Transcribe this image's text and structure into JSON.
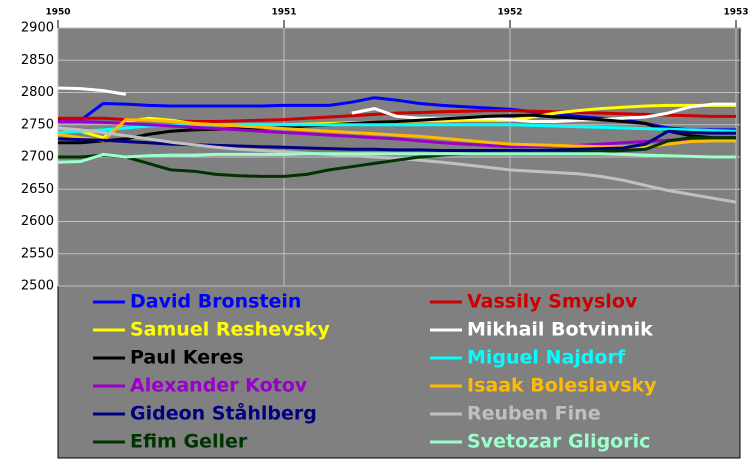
{
  "chart_data": {
    "type": "line",
    "x": [
      1950,
      1950.1,
      1950.2,
      1950.3,
      1950.4,
      1950.5,
      1950.6,
      1950.7,
      1950.8,
      1950.9,
      1951,
      1951.1,
      1951.2,
      1951.3,
      1951.4,
      1951.5,
      1951.6,
      1951.7,
      1951.8,
      1951.9,
      1952,
      1952.1,
      1952.2,
      1952.3,
      1952.4,
      1952.5,
      1952.6,
      1952.7,
      1952.8,
      1952.9,
      1953
    ],
    "xlim": [
      1950,
      1953
    ],
    "xticks": [
      1950,
      1951,
      1952,
      1953
    ],
    "ylim": [
      2500,
      2900
    ],
    "yticks": [
      2500,
      2550,
      2600,
      2650,
      2700,
      2750,
      2800,
      2850,
      2900
    ],
    "grid": true,
    "series": [
      {
        "name": "David Bronstein",
        "color": "#0000ff",
        "values": [
          2757,
          2757,
          2783,
          2782,
          2780,
          2779,
          2779,
          2779,
          2779,
          2779,
          2780,
          2780,
          2780,
          2785,
          2792,
          2788,
          2783,
          2780,
          2778,
          2776,
          2774,
          2770,
          2767,
          2763,
          2760,
          2758,
          2752,
          2745,
          2742,
          2742,
          2742
        ]
      },
      {
        "name": "Vassily Smyslov",
        "color": "#cc0000",
        "values": [
          2760,
          2760,
          2760,
          2758,
          2757,
          2756,
          2755,
          2755,
          2756,
          2757,
          2758,
          2760,
          2762,
          2764,
          2766,
          2768,
          2769,
          2770,
          2771,
          2772,
          2772,
          2771,
          2770,
          2769,
          2768,
          2767,
          2766,
          2765,
          2764,
          2763,
          2763
        ]
      },
      {
        "name": "Samuel Reshevsky",
        "color": "#ffff00",
        "values": [
          2745,
          2740,
          2730,
          2755,
          2760,
          2757,
          2752,
          2750,
          2750,
          2750,
          2750,
          2751,
          2752,
          2753,
          2754,
          2755,
          2756,
          2756,
          2757,
          2757,
          2757,
          2762,
          2768,
          2772,
          2775,
          2777,
          2779,
          2780,
          2780,
          2780,
          2780
        ]
      },
      {
        "name": "Mikhail Botvinnik",
        "color": "#ffffff",
        "values": [
          2807,
          2806,
          2803,
          2797,
          null,
          null,
          null,
          null,
          null,
          null,
          null,
          null,
          null,
          2768,
          2775,
          2763,
          2760,
          2760,
          2760,
          2760,
          2758,
          2755,
          2755,
          2757,
          2758,
          2760,
          2762,
          2768,
          2778,
          2782,
          2782
        ]
      },
      {
        "name": "Paul Keres",
        "color": "#000000",
        "values": [
          2722,
          2722,
          2725,
          2728,
          2735,
          2740,
          2742,
          2743,
          2744,
          2745,
          2746,
          2748,
          2750,
          2752,
          2754,
          2755,
          2757,
          2759,
          2761,
          2763,
          2764,
          2765,
          2762,
          2760,
          2758,
          2755,
          2752,
          2740,
          2733,
          2730,
          2730
        ]
      },
      {
        "name": "Miguel Najdorf",
        "color": "#00ffff",
        "values": [
          2738,
          2740,
          2742,
          2745,
          2748,
          2749,
          2750,
          2750,
          2750,
          2750,
          2750,
          2750,
          2750,
          2750,
          2750,
          2750,
          2750,
          2750,
          2750,
          2750,
          2750,
          2749,
          2748,
          2747,
          2746,
          2745,
          2744,
          2743,
          2742,
          2741,
          2740
        ]
      },
      {
        "name": "Alexander Kotov",
        "color": "#9900cc",
        "values": [
          2755,
          2755,
          2754,
          2752,
          2750,
          2748,
          2746,
          2744,
          2742,
          2740,
          2738,
          2736,
          2734,
          2732,
          2730,
          2728,
          2725,
          2722,
          2720,
          2718,
          2716,
          2716,
          2717,
          2718,
          2720,
          2722,
          2724,
          2726,
          2727,
          2728,
          2728
        ]
      },
      {
        "name": "Isaak Boleslavsky",
        "color": "#ffbb00",
        "values": [
          2735,
          2730,
          2725,
          2758,
          2757,
          2755,
          2752,
          2750,
          2748,
          2746,
          2744,
          2742,
          2740,
          2738,
          2736,
          2734,
          2732,
          2729,
          2726,
          2723,
          2720,
          2719,
          2718,
          2717,
          2716,
          2716,
          2716,
          2720,
          2724,
          2725,
          2725
        ]
      },
      {
        "name": "Gideon Ståhlberg",
        "color": "#000080",
        "values": [
          2728,
          2727,
          2726,
          2724,
          2722,
          2720,
          2719,
          2718,
          2717,
          2716,
          2715,
          2714,
          2713,
          2712,
          2712,
          2711,
          2711,
          2710,
          2710,
          2710,
          2710,
          2710,
          2711,
          2712,
          2713,
          2714,
          2720,
          2740,
          2738,
          2737,
          2737
        ]
      },
      {
        "name": "Reuben Fine",
        "color": "#c0c0c0",
        "values": [
          2745,
          2742,
          2738,
          2733,
          2728,
          2723,
          2719,
          2715,
          2712,
          2710,
          2708,
          2706,
          2704,
          2702,
          2700,
          2698,
          2695,
          2692,
          2688,
          2684,
          2680,
          2678,
          2676,
          2674,
          2670,
          2664,
          2656,
          2648,
          2642,
          2636,
          2630
        ]
      },
      {
        "name": "Efim Geller",
        "color": "#003300",
        "values": [
          2700,
          2700,
          2703,
          2700,
          2690,
          2680,
          2678,
          2673,
          2671,
          2670,
          2670,
          2673,
          2680,
          2685,
          2690,
          2695,
          2700,
          2703,
          2705,
          2706,
          2707,
          2707,
          2707,
          2708,
          2708,
          2710,
          2712,
          2725,
          2730,
          2730,
          2730
        ]
      },
      {
        "name": "Svetozar Gligoric",
        "color": "#99ffcc",
        "values": [
          2692,
          2693,
          2704,
          2700,
          2702,
          2703,
          2703,
          2704,
          2704,
          2704,
          2704,
          2705,
          2705,
          2705,
          2705,
          2705,
          2705,
          2705,
          2705,
          2705,
          2705,
          2705,
          2705,
          2705,
          2705,
          2704,
          2703,
          2702,
          2701,
          2700,
          2700
        ]
      }
    ]
  }
}
